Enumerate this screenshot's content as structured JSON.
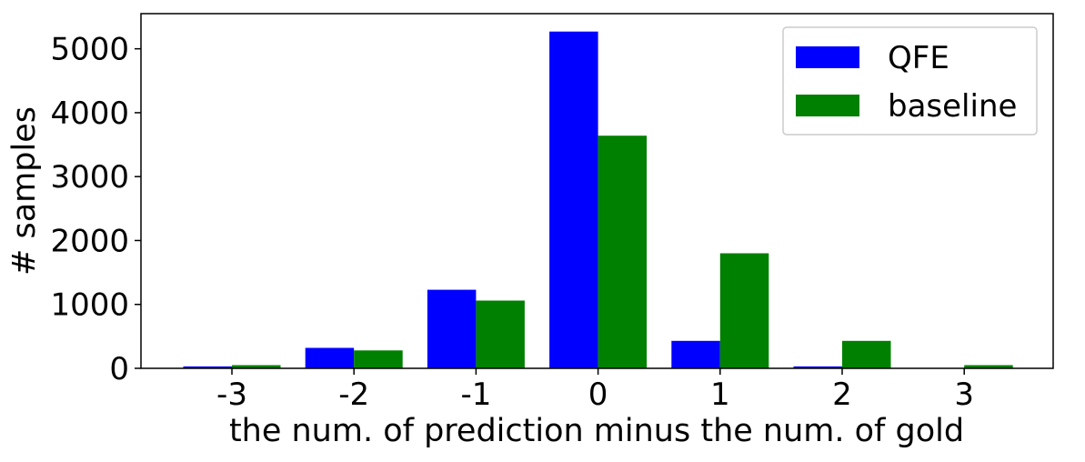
{
  "chart_data": {
    "type": "bar",
    "title": "",
    "xlabel": "the num. of prediction minus the num. of gold",
    "ylabel": "# samples",
    "categories": [
      "-3",
      "-2",
      "-1",
      "0",
      "1",
      "2",
      "3"
    ],
    "series": [
      {
        "name": "QFE",
        "color": "#0000ff",
        "values": [
          30,
          320,
          1230,
          5270,
          430,
          30,
          0
        ]
      },
      {
        "name": "baseline",
        "color": "#008000",
        "values": [
          50,
          280,
          1060,
          3640,
          1800,
          430,
          50
        ]
      }
    ],
    "ylim": [
      0,
      5550
    ],
    "yticks": [
      "0",
      "1000",
      "2000",
      "3000",
      "4000",
      "5000"
    ],
    "ytick_values": [
      0,
      1000,
      2000,
      3000,
      4000,
      5000
    ],
    "legend": {
      "position": "top-right"
    },
    "grid": false
  }
}
